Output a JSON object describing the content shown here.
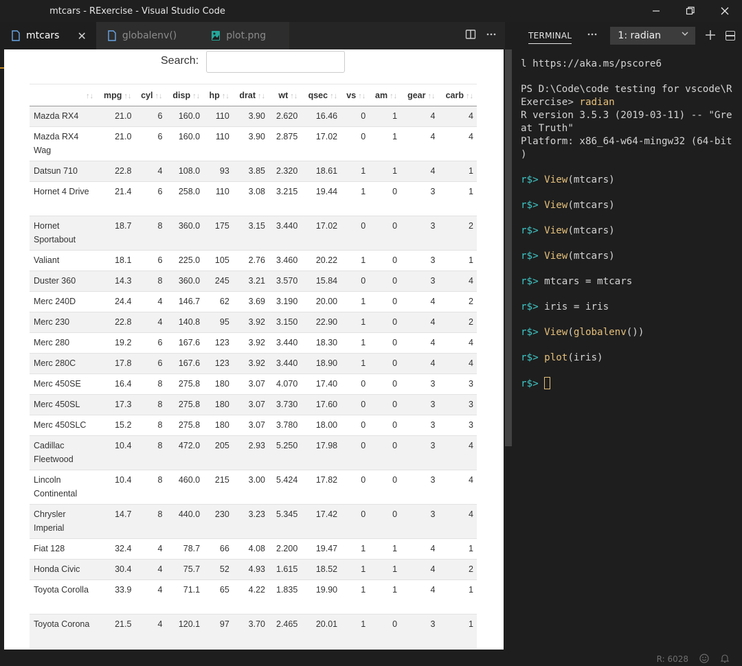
{
  "window": {
    "title": "mtcars - RExercise - Visual Studio Code"
  },
  "tabs": [
    {
      "label": "mtcars",
      "active": true
    },
    {
      "label": "globalenv()",
      "active": false
    },
    {
      "label": "plot.png",
      "active": false
    }
  ],
  "tab_close": "✕",
  "viewer": {
    "search_label": "Search:",
    "search_value": "",
    "columns": [
      "",
      "mpg",
      "cyl",
      "disp",
      "hp",
      "drat",
      "wt",
      "qsec",
      "vs",
      "am",
      "gear",
      "carb"
    ],
    "sort_glyph": "↑↓",
    "rows": [
      [
        "Mazda RX4",
        "21.0",
        "6",
        "160.0",
        "110",
        "3.90",
        "2.620",
        "16.46",
        "0",
        "1",
        "4",
        "4"
      ],
      [
        "Mazda RX4 Wag",
        "21.0",
        "6",
        "160.0",
        "110",
        "3.90",
        "2.875",
        "17.02",
        "0",
        "1",
        "4",
        "4"
      ],
      [
        "Datsun 710",
        "22.8",
        "4",
        "108.0",
        "93",
        "3.85",
        "2.320",
        "18.61",
        "1",
        "1",
        "4",
        "1"
      ],
      [
        "Hornet 4 Drive",
        "21.4",
        "6",
        "258.0",
        "110",
        "3.08",
        "3.215",
        "19.44",
        "1",
        "0",
        "3",
        "1"
      ],
      [
        "Hornet Sportabout",
        "18.7",
        "8",
        "360.0",
        "175",
        "3.15",
        "3.440",
        "17.02",
        "0",
        "0",
        "3",
        "2"
      ],
      [
        "Valiant",
        "18.1",
        "6",
        "225.0",
        "105",
        "2.76",
        "3.460",
        "20.22",
        "1",
        "0",
        "3",
        "1"
      ],
      [
        "Duster 360",
        "14.3",
        "8",
        "360.0",
        "245",
        "3.21",
        "3.570",
        "15.84",
        "0",
        "0",
        "3",
        "4"
      ],
      [
        "Merc 240D",
        "24.4",
        "4",
        "146.7",
        "62",
        "3.69",
        "3.190",
        "20.00",
        "1",
        "0",
        "4",
        "2"
      ],
      [
        "Merc 230",
        "22.8",
        "4",
        "140.8",
        "95",
        "3.92",
        "3.150",
        "22.90",
        "1",
        "0",
        "4",
        "2"
      ],
      [
        "Merc 280",
        "19.2",
        "6",
        "167.6",
        "123",
        "3.92",
        "3.440",
        "18.30",
        "1",
        "0",
        "4",
        "4"
      ],
      [
        "Merc 280C",
        "17.8",
        "6",
        "167.6",
        "123",
        "3.92",
        "3.440",
        "18.90",
        "1",
        "0",
        "4",
        "4"
      ],
      [
        "Merc 450SE",
        "16.4",
        "8",
        "275.8",
        "180",
        "3.07",
        "4.070",
        "17.40",
        "0",
        "0",
        "3",
        "3"
      ],
      [
        "Merc 450SL",
        "17.3",
        "8",
        "275.8",
        "180",
        "3.07",
        "3.730",
        "17.60",
        "0",
        "0",
        "3",
        "3"
      ],
      [
        "Merc 450SLC",
        "15.2",
        "8",
        "275.8",
        "180",
        "3.07",
        "3.780",
        "18.00",
        "0",
        "0",
        "3",
        "3"
      ],
      [
        "Cadillac Fleetwood",
        "10.4",
        "8",
        "472.0",
        "205",
        "2.93",
        "5.250",
        "17.98",
        "0",
        "0",
        "3",
        "4"
      ],
      [
        "Lincoln Continental",
        "10.4",
        "8",
        "460.0",
        "215",
        "3.00",
        "5.424",
        "17.82",
        "0",
        "0",
        "3",
        "4"
      ],
      [
        "Chrysler Imperial",
        "14.7",
        "8",
        "440.0",
        "230",
        "3.23",
        "5.345",
        "17.42",
        "0",
        "0",
        "3",
        "4"
      ],
      [
        "Fiat 128",
        "32.4",
        "4",
        "78.7",
        "66",
        "4.08",
        "2.200",
        "19.47",
        "1",
        "1",
        "4",
        "1"
      ],
      [
        "Honda Civic",
        "30.4",
        "4",
        "75.7",
        "52",
        "4.93",
        "1.615",
        "18.52",
        "1",
        "1",
        "4",
        "2"
      ],
      [
        "Toyota Corolla",
        "33.9",
        "4",
        "71.1",
        "65",
        "4.22",
        "1.835",
        "19.90",
        "1",
        "1",
        "4",
        "1"
      ],
      [
        "Toyota Corona",
        "21.5",
        "4",
        "120.1",
        "97",
        "3.70",
        "2.465",
        "20.01",
        "1",
        "0",
        "3",
        "1"
      ]
    ]
  },
  "terminal": {
    "tab_label": "TERMINAL",
    "instance": "1: radian",
    "lines": [
      {
        "kind": "text",
        "text": "l https://aka.ms/pscore6"
      },
      {
        "kind": "gap"
      },
      {
        "kind": "text",
        "text": "PS D:\\Code\\code testing for vscode\\R"
      },
      {
        "kind": "mixed",
        "text": "Exercise> ",
        "cmd": "radian"
      },
      {
        "kind": "text",
        "text": "R version 3.5.3 (2019-03-11) -- \"Gre"
      },
      {
        "kind": "text",
        "text": "at Truth\""
      },
      {
        "kind": "text",
        "text": "Platform: x86_64-w64-mingw32 (64-bit"
      },
      {
        "kind": "text",
        "text": ")"
      },
      {
        "kind": "gap"
      },
      {
        "kind": "prompt",
        "prompt": "r$> ",
        "cmd": "View",
        "rest": "(mtcars)"
      },
      {
        "kind": "gap"
      },
      {
        "kind": "prompt",
        "prompt": "r$> ",
        "cmd": "View",
        "rest": "(mtcars)"
      },
      {
        "kind": "gap"
      },
      {
        "kind": "prompt",
        "prompt": "r$> ",
        "cmd": "View",
        "rest": "(mtcars)"
      },
      {
        "kind": "gap"
      },
      {
        "kind": "prompt",
        "prompt": "r$> ",
        "cmd": "View",
        "rest": "(mtcars)"
      },
      {
        "kind": "gap"
      },
      {
        "kind": "prompt",
        "prompt": "r$> ",
        "cmd": "",
        "rest": "mtcars = mtcars"
      },
      {
        "kind": "gap"
      },
      {
        "kind": "prompt",
        "prompt": "r$> ",
        "cmd": "",
        "rest": "iris = iris"
      },
      {
        "kind": "gap"
      },
      {
        "kind": "prompt",
        "prompt": "r$> ",
        "cmd": "View",
        "rest": "(",
        "cmd2": "globalenv",
        "rest2": "())"
      },
      {
        "kind": "gap"
      },
      {
        "kind": "prompt",
        "prompt": "r$> ",
        "cmd": "plot",
        "rest": "(iris)"
      },
      {
        "kind": "gap"
      },
      {
        "kind": "cursor",
        "prompt": "r$> "
      }
    ]
  },
  "status": {
    "r_port": "R: 6028"
  },
  "icons": {
    "minimize": "minimize-icon",
    "restore": "restore-icon",
    "close": "close-icon",
    "split_editor": "split-editor-icon",
    "more": "more-actions-icon",
    "file": "file-icon",
    "image_file": "image-file-icon",
    "chevron": "chevron-down-icon",
    "plus": "plus-icon",
    "split_terminal": "split-terminal-icon",
    "feedback": "smiley-icon",
    "notifications": "bell-icon"
  },
  "colors": {
    "prompt": "#3fc5c5",
    "command": "#e5c07b",
    "viewer_bg": "#ffffff",
    "stripe": "#f2f2f2"
  }
}
